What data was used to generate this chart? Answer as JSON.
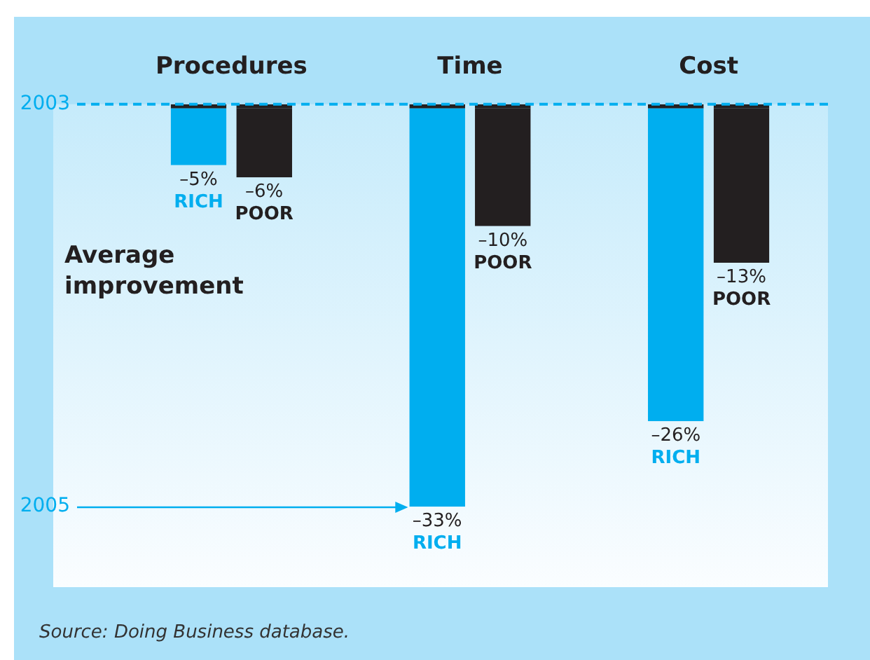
{
  "chart_data": {
    "type": "bar",
    "categories": [
      "Procedures",
      "Time",
      "Cost"
    ],
    "series": [
      {
        "name": "RICH",
        "color": "#00aeef",
        "values": [
          -5,
          -33,
          -26
        ],
        "value_labels": [
          "–5%",
          "–33%",
          "–26%"
        ]
      },
      {
        "name": "POOR",
        "color": "#231f20",
        "values": [
          -6,
          -10,
          -13
        ],
        "value_labels": [
          "–6%",
          "–10%",
          "–13%"
        ]
      }
    ],
    "ref_lines": [
      {
        "axis": "y",
        "value": 0,
        "color": "#00aeef",
        "line_style": "dashed"
      }
    ],
    "annotations": [
      "Average improvement",
      "2003",
      "2005",
      "Source: Doing Business database."
    ],
    "grid": false
  }
}
